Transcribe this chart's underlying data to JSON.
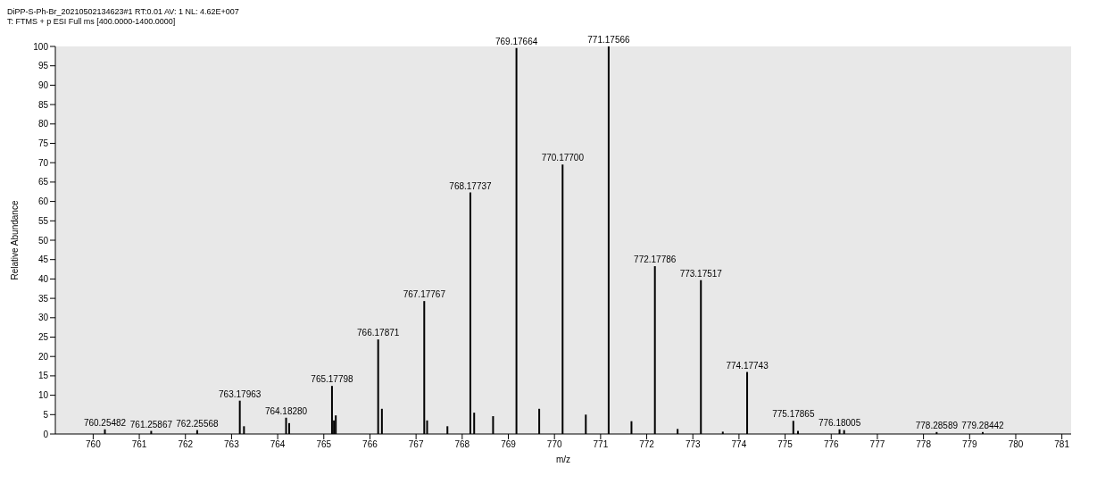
{
  "chart_data": {
    "type": "bar",
    "title": "DiPP-S-Ph-Br_20210502134623#1 RT:0.01 AV: 1 NL: 4.62E+007",
    "subtitle": "T: FTMS + p ESI Full ms [400.0000-1400.0000]",
    "xlabel": "m/z",
    "ylabel": "Relative Abundance",
    "color": "#000000",
    "x": [
      760.25482,
      761.25867,
      762.25568,
      763.17963,
      763.27,
      764.1828,
      764.25,
      765.17798,
      765.22,
      765.26,
      766.17871,
      766.26,
      767.17767,
      767.24,
      767.68,
      768.17737,
      768.26,
      768.67,
      769.17664,
      769.67,
      770.177,
      770.68,
      771.17566,
      771.67,
      772.17786,
      772.67,
      773.17517,
      773.65,
      774.17743,
      775.17865,
      775.28,
      776.18005,
      776.28,
      778.28589,
      779.28442
    ],
    "values": [
      1.2,
      0.8,
      1,
      8.6,
      2,
      4.2,
      2.8,
      12.4,
      3.5,
      4.8,
      24.4,
      6.5,
      34.3,
      3.5,
      2,
      62.3,
      5.5,
      4.6,
      99.6,
      6.5,
      69.5,
      5,
      100,
      3.3,
      43.3,
      1.3,
      39.7,
      0.6,
      16,
      3.4,
      0.8,
      1.2,
      1,
      0.5,
      0.5
    ],
    "xlim": [
      759.18,
      781.2
    ],
    "xticks": [
      760,
      761,
      762,
      763,
      764,
      765,
      766,
      767,
      768,
      769,
      770,
      771,
      772,
      773,
      774,
      775,
      776,
      777,
      778,
      779,
      780,
      781
    ],
    "ylim": [
      0,
      100
    ],
    "yticks": [
      0,
      5,
      10,
      15,
      20,
      25,
      30,
      35,
      40,
      45,
      50,
      55,
      60,
      65,
      70,
      75,
      80,
      85,
      90,
      95,
      100
    ],
    "annotations": [
      {
        "text": "760.25482",
        "x": 760.25482,
        "y": 1.2
      },
      {
        "text": "761.25867",
        "x": 761.25867,
        "y": 0.8
      },
      {
        "text": "762.25568",
        "x": 762.25568,
        "y": 1
      },
      {
        "text": "763.17963",
        "x": 763.17963,
        "y": 8.6
      },
      {
        "text": "764.18280",
        "x": 764.1828,
        "y": 4.2
      },
      {
        "text": "765.17798",
        "x": 765.17798,
        "y": 12.4
      },
      {
        "text": "766.17871",
        "x": 766.17871,
        "y": 24.4
      },
      {
        "text": "767.17767",
        "x": 767.17767,
        "y": 34.3
      },
      {
        "text": "768.17737",
        "x": 768.17737,
        "y": 62.3
      },
      {
        "text": "769.17664",
        "x": 769.17664,
        "y": 99.6
      },
      {
        "text": "770.17700",
        "x": 770.177,
        "y": 69.5
      },
      {
        "text": "771.17566",
        "x": 771.17566,
        "y": 100
      },
      {
        "text": "772.17786",
        "x": 772.17786,
        "y": 43.3
      },
      {
        "text": "773.17517",
        "x": 773.17517,
        "y": 39.7
      },
      {
        "text": "774.17743",
        "x": 774.17743,
        "y": 16
      },
      {
        "text": "775.17865",
        "x": 775.17865,
        "y": 3.4
      },
      {
        "text": "776.18005",
        "x": 776.18005,
        "y": 1.2
      },
      {
        "text": "778.28589",
        "x": 778.28589,
        "y": 0.5
      },
      {
        "text": "779.28442",
        "x": 779.28442,
        "y": 0.5
      }
    ]
  }
}
